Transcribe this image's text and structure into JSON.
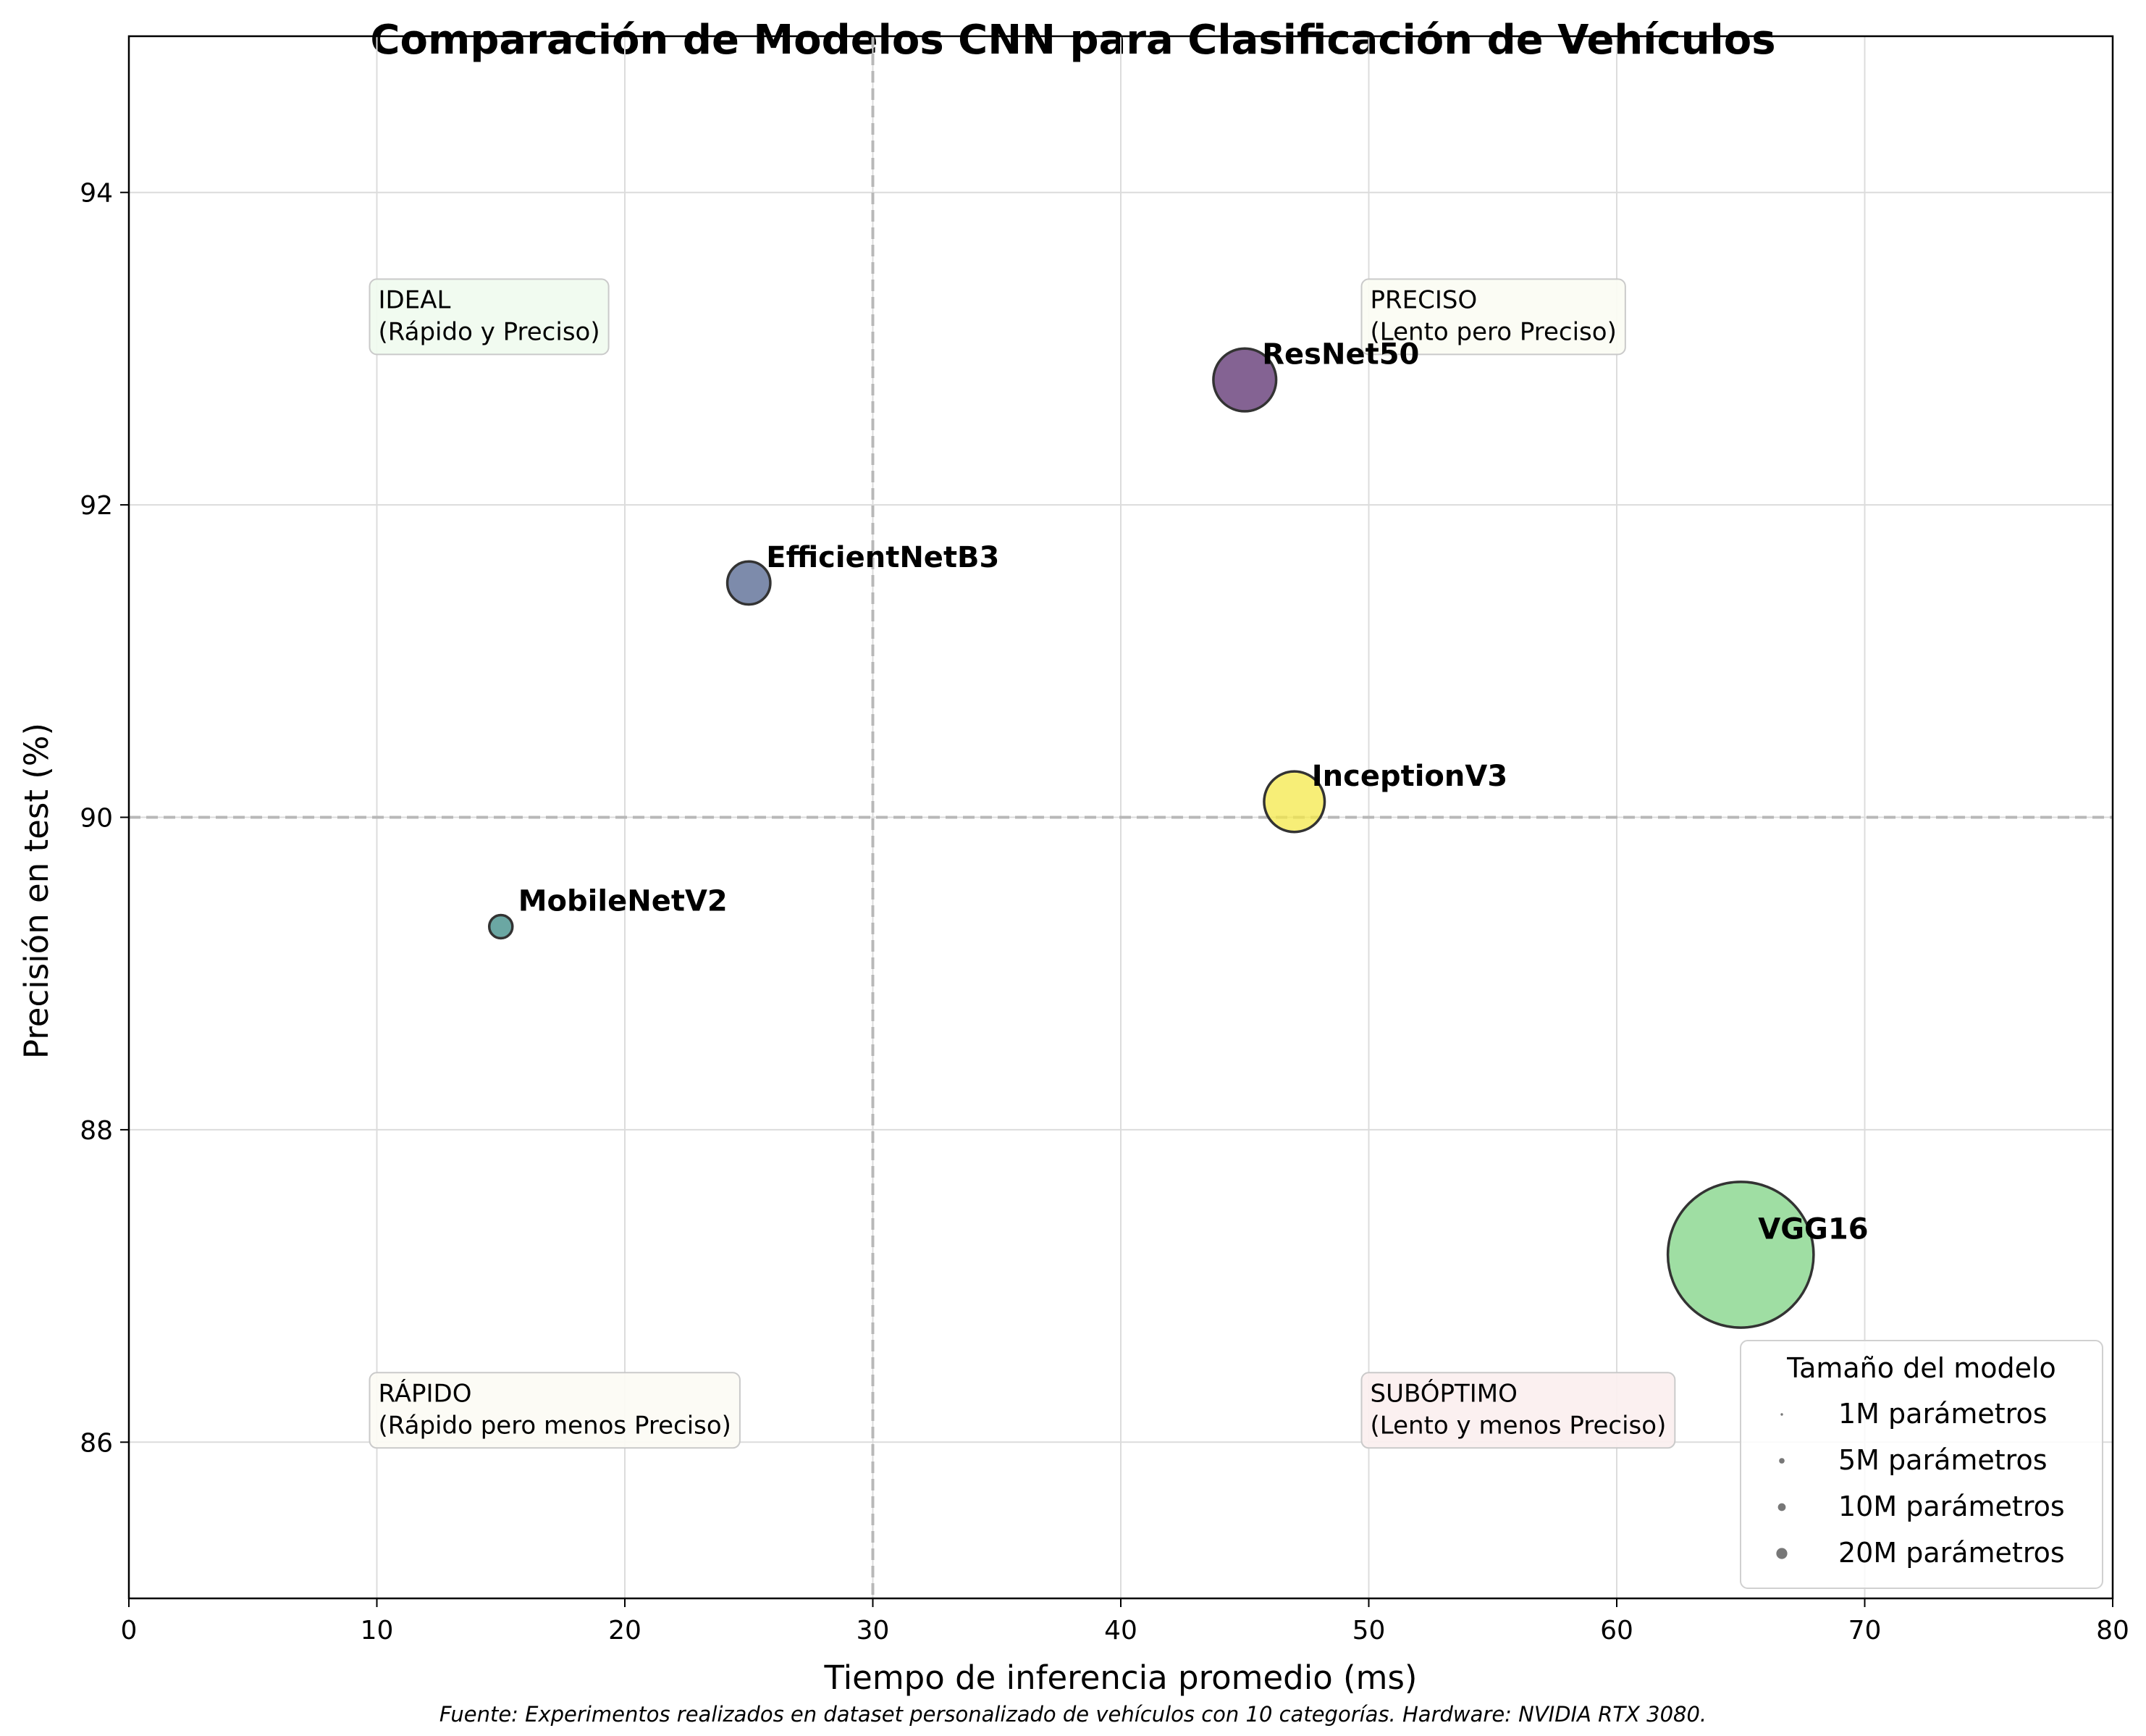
{
  "chart_data": {
    "type": "scatter",
    "title": "Comparación de Modelos CNN para Clasificación de Vehículos",
    "xlabel": "Tiempo de inferencia promedio (ms)",
    "ylabel": "Precisión en test (%)",
    "xlim": [
      0,
      80
    ],
    "ylim": [
      85,
      95
    ],
    "xticks": [
      0,
      10,
      20,
      30,
      40,
      50,
      60,
      70,
      80
    ],
    "yticks": [
      86,
      88,
      90,
      92,
      94
    ],
    "grid": true,
    "reference_lines": {
      "x": 30,
      "y": 90
    },
    "points": [
      {
        "label": "ResNet50",
        "x": 45,
        "y": 92.8,
        "params_m": 25.6,
        "color": "#5b2f6f"
      },
      {
        "label": "EfficientNetB3",
        "x": 25,
        "y": 91.5,
        "params_m": 12.0,
        "color": "#52648f"
      },
      {
        "label": "InceptionV3",
        "x": 47,
        "y": 90.1,
        "params_m": 23.8,
        "color": "#f4e84a"
      },
      {
        "label": "MobileNetV2",
        "x": 15,
        "y": 89.3,
        "params_m": 3.5,
        "color": "#3a8a84"
      },
      {
        "label": "VGG16",
        "x": 65,
        "y": 87.2,
        "params_m": 138.0,
        "color": "#7fd384"
      }
    ],
    "quadrants": [
      {
        "title": "IDEAL",
        "subtitle": "(Rápido y Preciso)",
        "x": 10,
        "y": 93,
        "fill": "#f1fbf0"
      },
      {
        "title": "PRECISO",
        "subtitle": "(Lento pero Preciso)",
        "x": 50,
        "y": 93,
        "fill": "#fbfcf4"
      },
      {
        "title": "RÁPIDO",
        "subtitle": "(Rápido pero menos Preciso)",
        "x": 10,
        "y": 86,
        "fill": "#fcfbf5"
      },
      {
        "title": "SUBÓPTIMO",
        "subtitle": "(Lento y menos Preciso)",
        "x": 50,
        "y": 86,
        "fill": "#fbf0f0"
      }
    ],
    "legend": {
      "title": "Tamaño del modelo",
      "placement": "lower-right",
      "items": [
        {
          "label": "1M parámetros",
          "params_m": 1
        },
        {
          "label": "5M parámetros",
          "params_m": 5
        },
        {
          "label": "10M parámetros",
          "params_m": 10
        },
        {
          "label": "20M parámetros",
          "params_m": 20
        }
      ]
    },
    "footnote": "Fuente: Experimentos realizados en dataset personalizado de vehículos con 10 categorías. Hardware: NVIDIA RTX 3080."
  }
}
